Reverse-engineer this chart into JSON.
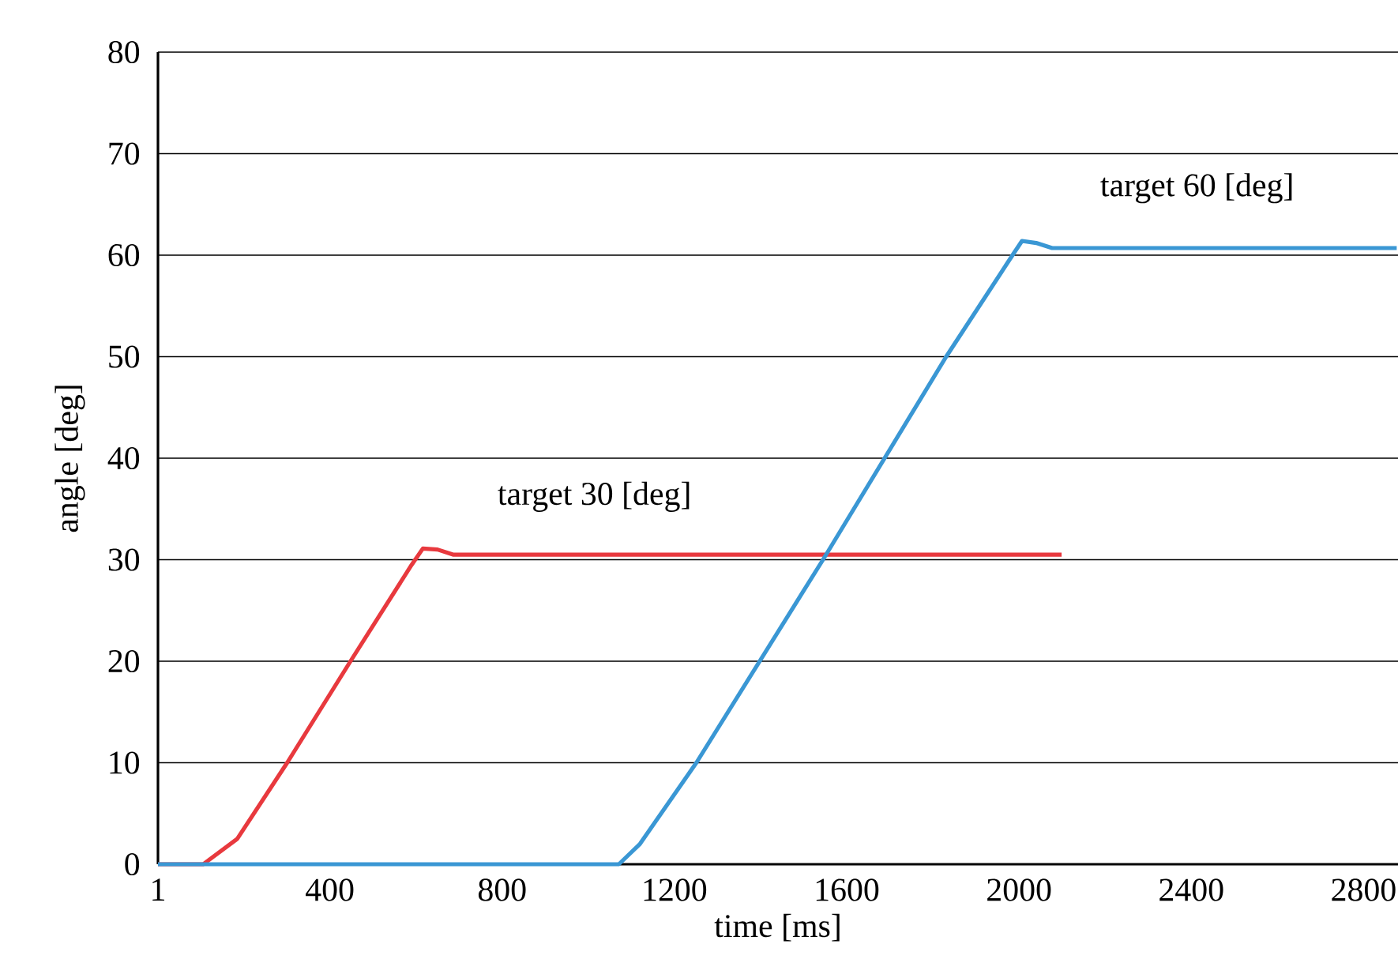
{
  "chart_data": {
    "type": "line",
    "xlabel": "time [ms]",
    "ylabel": "angle [deg]",
    "xlim": [
      1,
      2880
    ],
    "ylim": [
      0,
      80
    ],
    "xticks": [
      1,
      400,
      800,
      1200,
      1600,
      2000,
      2400,
      2800
    ],
    "yticks": [
      0,
      10,
      20,
      30,
      40,
      50,
      60,
      70,
      80
    ],
    "grid": "y",
    "line_style": "solid",
    "marker": "none",
    "series": [
      {
        "color": "#e8393e",
        "x": [
          1,
          106,
          185,
          301,
          448,
          590,
          616,
          650,
          686,
          1000,
          1500,
          2099
        ],
        "values": [
          0,
          0,
          2.5,
          10,
          20,
          29.5,
          31.1,
          31,
          30.5,
          30.5,
          30.5,
          30.5
        ]
      },
      {
        "color": "#3a97d4",
        "x": [
          1,
          1071,
          1120,
          1251,
          1545,
          1831,
          1985,
          2007,
          2040,
          2077,
          2500,
          2877
        ],
        "values": [
          0,
          0,
          2,
          10,
          30,
          50,
          60,
          61.4,
          61.2,
          60.7,
          60.7,
          60.7
        ]
      }
    ],
    "annotations": [
      "target 30 [deg]",
      "target 60 [deg]"
    ]
  }
}
